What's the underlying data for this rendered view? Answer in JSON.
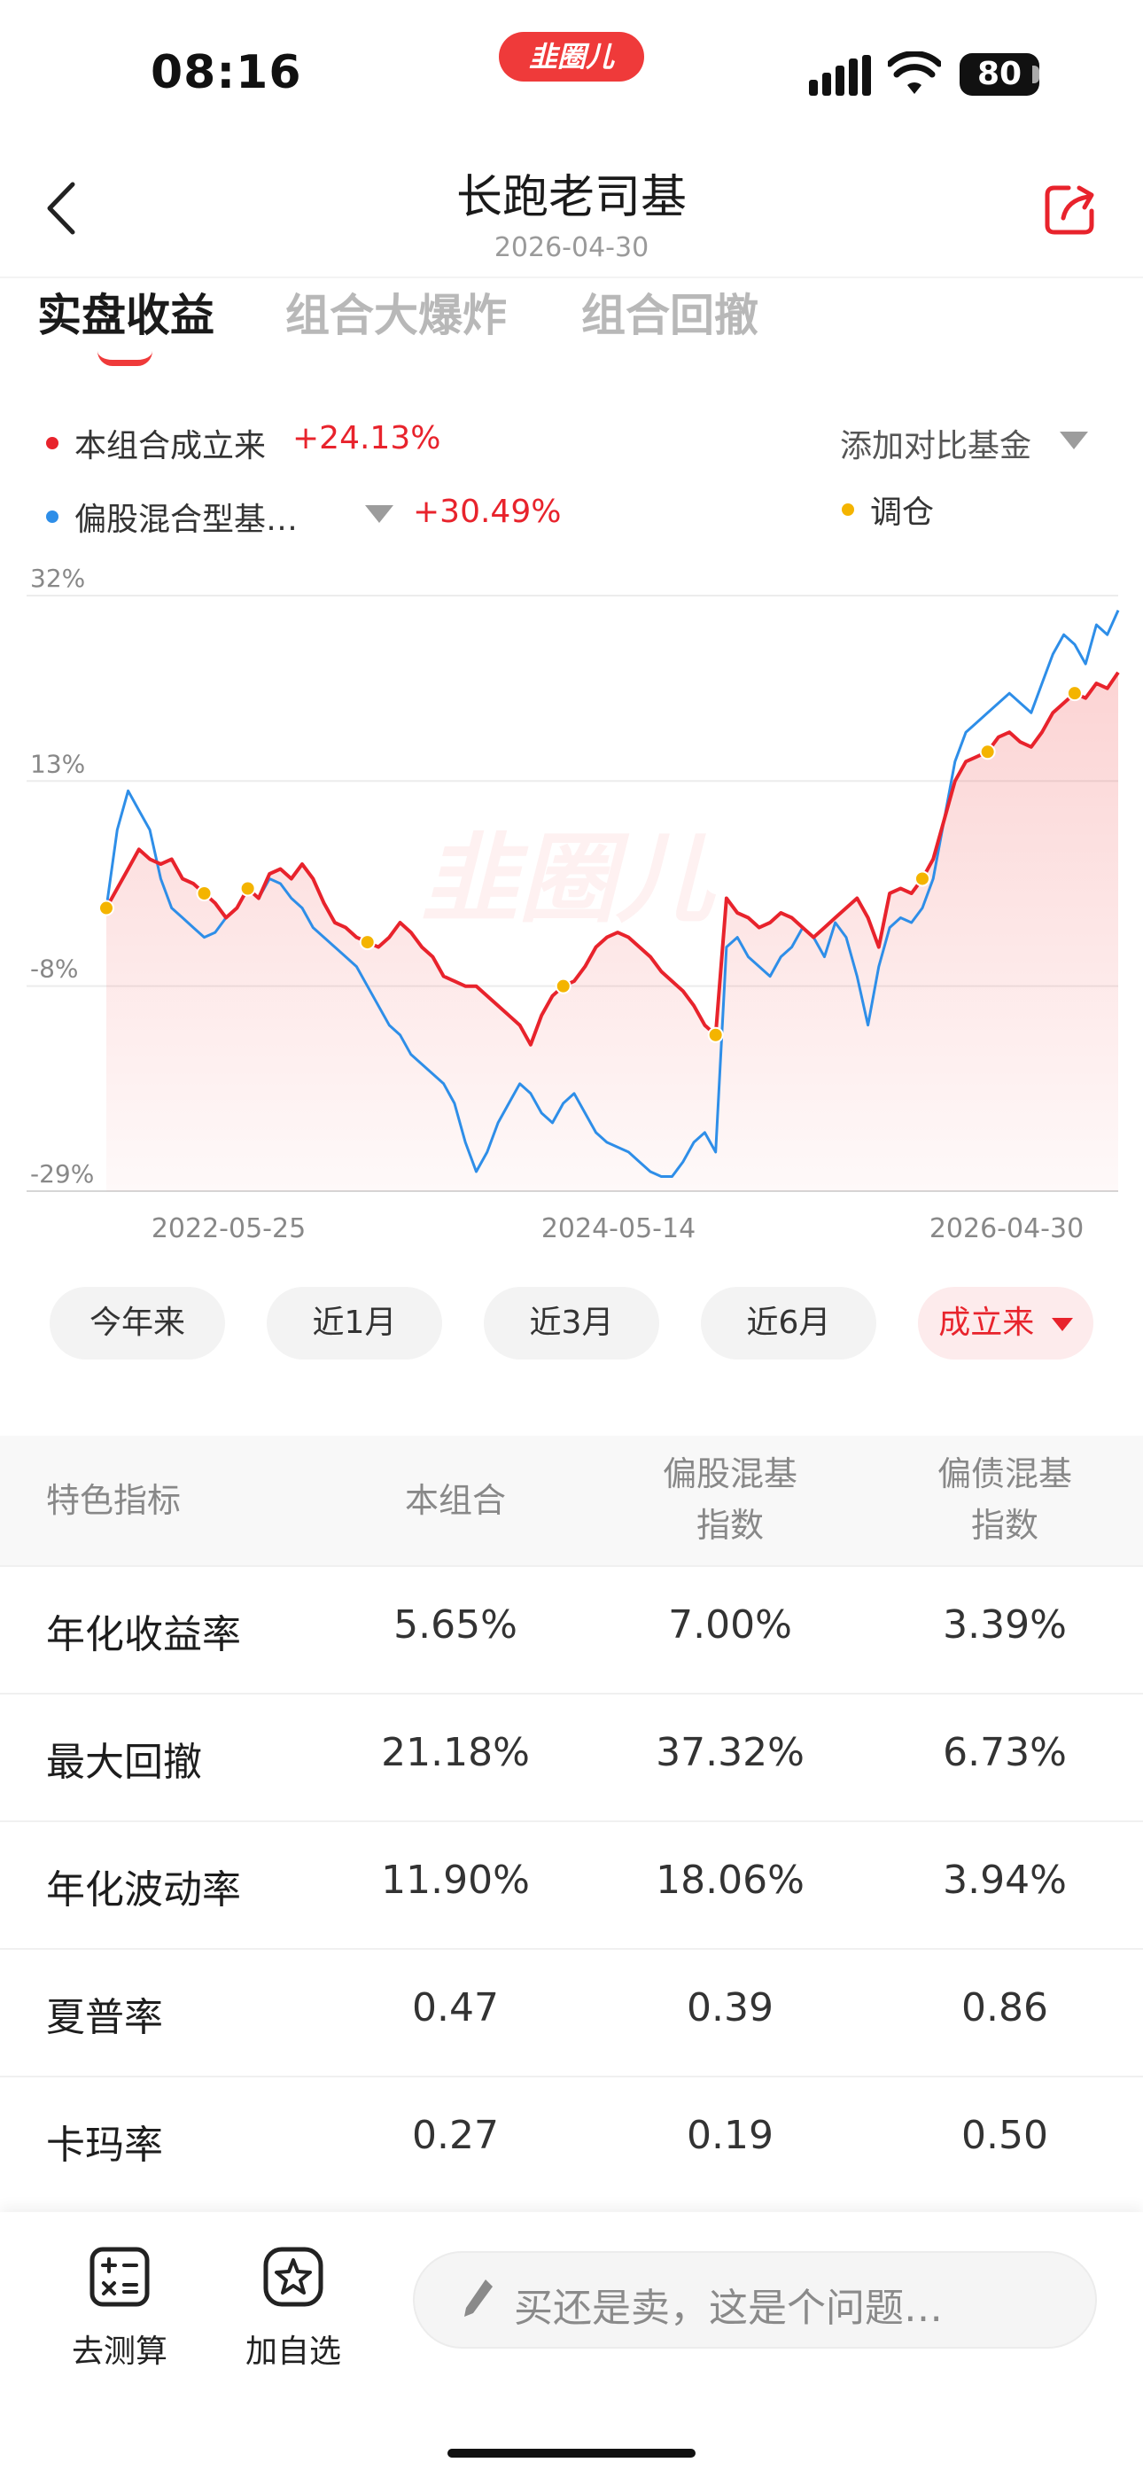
{
  "status": {
    "time": "08:16",
    "battery": "80",
    "app_badge": "韭圈儿"
  },
  "header": {
    "title": "长跑老司基",
    "date": "2026-04-30"
  },
  "tabs": [
    {
      "label": "实盘收益",
      "active": true
    },
    {
      "label": "组合大爆炸",
      "active": false
    },
    {
      "label": "组合回撤",
      "active": false
    }
  ],
  "legend": {
    "series1_label": "本组合成立来",
    "series1_value": "+24.13%",
    "series2_label": "偏股混合型基…",
    "series2_value": "+30.49%",
    "compare_label": "添加对比基金",
    "rebalance_label": "调仓"
  },
  "watermark": "韭圈儿",
  "chart_data": {
    "type": "line",
    "y_ticks": [
      "32%",
      "13%",
      "-8%",
      "-29%"
    ],
    "x_ticks": [
      "2022-05-25",
      "2024-05-14",
      "2026-04-30"
    ],
    "ylim": [
      -29,
      32
    ],
    "grid": true,
    "colors": {
      "series1": "#e8232c",
      "series2": "#2e8ee8",
      "rebalance": "#f4b400"
    },
    "series": [
      {
        "name": "本组合成立来",
        "values": [
          0,
          2,
          4,
          6,
          5,
          4.5,
          5,
          3,
          2.5,
          1.5,
          0.5,
          -1,
          0,
          2,
          1,
          3.5,
          4,
          3,
          4.5,
          3,
          0.5,
          -1.5,
          -2,
          -3,
          -3.5,
          -4,
          -3,
          -1.5,
          -2.5,
          -4,
          -5,
          -7,
          -7.5,
          -8,
          -8,
          -9,
          -10,
          -11,
          -12,
          -14,
          -11,
          -9,
          -8,
          -7.5,
          -6,
          -4,
          -3,
          -2.5,
          -3,
          -4,
          -5,
          -6.5,
          -7.5,
          -8.5,
          -10,
          -12,
          -13,
          1,
          -0.5,
          -1,
          -2,
          -1.5,
          -0.5,
          -1,
          -2,
          -3,
          -2,
          -1,
          0,
          1,
          -1,
          -4,
          1.5,
          2,
          1.5,
          3,
          5,
          9,
          13,
          15,
          15.5,
          16,
          17.5,
          18,
          17,
          16.5,
          18,
          20,
          21,
          22,
          21.5,
          23,
          22.5,
          24.13
        ]
      },
      {
        "name": "偏股混合型基…",
        "values": [
          0,
          8,
          12,
          10,
          8,
          3,
          0,
          -1,
          -2,
          -3,
          -2.5,
          -1,
          0,
          2,
          1,
          3,
          2.5,
          1,
          0,
          -2,
          -3,
          -4,
          -5,
          -6,
          -8,
          -10,
          -12,
          -13,
          -15,
          -16,
          -17,
          -18,
          -20,
          -24,
          -27,
          -25,
          -22,
          -20,
          -18,
          -19,
          -21,
          -22,
          -20,
          -19,
          -21,
          -23,
          -24,
          -24.5,
          -25,
          -26,
          -27,
          -27.5,
          -27.5,
          -26,
          -24,
          -23,
          -25,
          -4,
          -3,
          -5,
          -6,
          -7,
          -5,
          -4,
          -2,
          -3,
          -5,
          -1.5,
          -3,
          -7,
          -12,
          -6,
          -2,
          -1,
          -1.5,
          0,
          3,
          9,
          15,
          18,
          19,
          20,
          21,
          22,
          21,
          20,
          23,
          26,
          28,
          27,
          25,
          29,
          28,
          30.49
        ]
      }
    ],
    "rebalance_points": [
      0,
      9,
      13,
      24,
      42,
      56,
      75,
      81,
      89
    ]
  },
  "ranges": [
    {
      "label": "今年来",
      "active": false
    },
    {
      "label": "近1月",
      "active": false
    },
    {
      "label": "近3月",
      "active": false
    },
    {
      "label": "近6月",
      "active": false
    },
    {
      "label": "成立来",
      "active": true
    }
  ],
  "metrics": {
    "headers": [
      "特色指标",
      "本组合",
      "偏股混基",
      "指数",
      "偏债混基",
      "指数"
    ],
    "rows": [
      {
        "label": "年化收益率",
        "values": [
          "5.65%",
          "7.00%",
          "3.39%"
        ]
      },
      {
        "label": "最大回撤",
        "values": [
          "21.18%",
          "37.32%",
          "6.73%"
        ]
      },
      {
        "label": "年化波动率",
        "values": [
          "11.90%",
          "18.06%",
          "3.94%"
        ]
      },
      {
        "label": "夏普率",
        "values": [
          "0.47",
          "0.39",
          "0.86"
        ]
      },
      {
        "label": "卡玛率",
        "values": [
          "0.27",
          "0.19",
          "0.50"
        ]
      }
    ]
  },
  "bottom": {
    "calc_label": "去测算",
    "fav_label": "加自选",
    "ask_placeholder": "买还是卖，这是个问题…"
  }
}
